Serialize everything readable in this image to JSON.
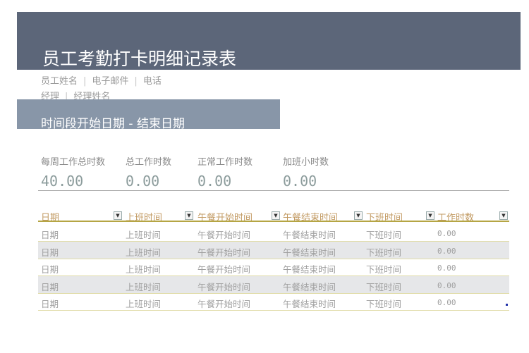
{
  "header": {
    "title": "员工考勤打卡明细记录表",
    "employee_name": "员工姓名",
    "email": "电子邮件",
    "phone": "电话",
    "manager_label": "经理",
    "manager_name": "经理姓名",
    "period": "时间段开始日期 - 结束日期"
  },
  "summary": [
    {
      "label": "每周工作总时数",
      "value": "40.00"
    },
    {
      "label": "总工作时数",
      "value": "0.00"
    },
    {
      "label": "正常工作时数",
      "value": "0.00"
    },
    {
      "label": "加班小时数",
      "value": "0.00"
    }
  ],
  "table": {
    "columns": [
      "日期",
      "上班时间",
      "午餐开始时间",
      "午餐结束时间",
      "下班时间",
      "工作时数"
    ],
    "rows": [
      [
        "日期",
        "上班时间",
        "午餐开始时间",
        "午餐结束时间",
        "下班时间",
        "0.00"
      ],
      [
        "日期",
        "上班时间",
        "午餐开始时间",
        "午餐结束时间",
        "下班时间",
        "0.00"
      ],
      [
        "日期",
        "上班时间",
        "午餐开始时间",
        "午餐结束时间",
        "下班时间",
        "0.00"
      ],
      [
        "日期",
        "上班时间",
        "午餐开始时间",
        "午餐结束时间",
        "下班时间",
        "0.00"
      ],
      [
        "日期",
        "上班时间",
        "午餐开始时间",
        "午餐结束时间",
        "下班时间",
        "0.00"
      ]
    ]
  },
  "colors": {
    "header_bg": "#5c6679",
    "band_bg": "#8896a8",
    "header_text": "#c29a62",
    "rule": "#b5a544"
  },
  "icons": {
    "filter": "dropdown-arrow-icon"
  }
}
